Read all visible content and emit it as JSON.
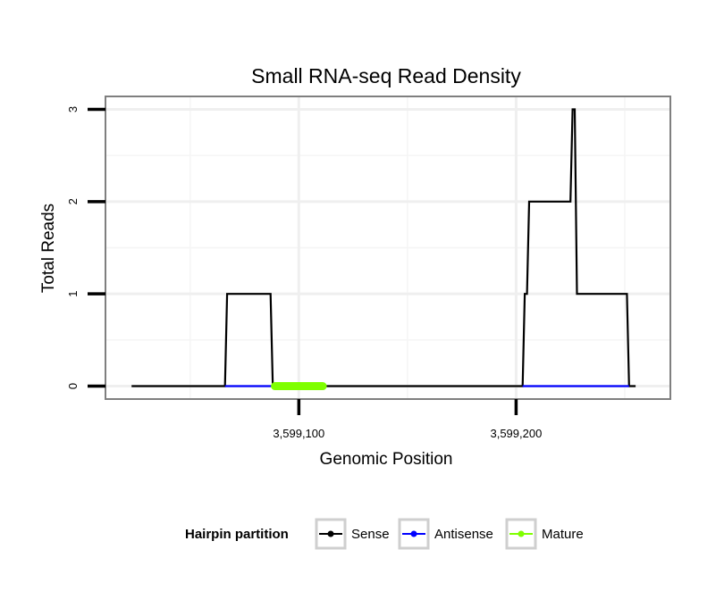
{
  "chart_data": {
    "type": "line",
    "title": "Small RNA-seq Read Density",
    "xlabel": "Genomic Position",
    "ylabel": "Total Reads",
    "xlim": [
      3599011,
      3599271
    ],
    "ylim": [
      -0.14,
      3.14
    ],
    "x_ticks": [
      {
        "value": 3599100,
        "label": "3,599,100"
      },
      {
        "value": 3599200,
        "label": "3,599,200"
      }
    ],
    "y_ticks": [
      {
        "value": 0,
        "label": "0"
      },
      {
        "value": 1,
        "label": "1"
      },
      {
        "value": 2,
        "label": "2"
      },
      {
        "value": 3,
        "label": "3"
      }
    ],
    "x_minor_gridlines": [
      3599050,
      3599150,
      3599250
    ],
    "y_minor_gridlines": [
      0.5,
      1.5,
      2.5
    ],
    "grid": true,
    "legend": {
      "title": "Hairpin partition",
      "position": "bottom",
      "entries": [
        {
          "name": "Sense",
          "color": "#000000"
        },
        {
          "name": "Antisense",
          "color": "#0000ff"
        },
        {
          "name": "Mature",
          "color": "#7fff00"
        }
      ]
    },
    "series": [
      {
        "name": "Sense",
        "color": "#000000",
        "x": [
          3599023,
          3599066,
          3599067,
          3599087,
          3599088,
          3599203,
          3599204,
          3599205,
          3599206,
          3599225,
          3599226,
          3599227,
          3599228,
          3599251,
          3599252,
          3599255
        ],
        "y": [
          0,
          0,
          1,
          1,
          0,
          0,
          1,
          1,
          2,
          2,
          3,
          3,
          1,
          1,
          0,
          0
        ]
      },
      {
        "name": "Antisense",
        "color": "#0000ff",
        "x": [
          3599066,
          3599088,
          3599203,
          3599252
        ],
        "y": [
          0,
          0,
          0,
          0
        ],
        "segments": [
          [
            3599066,
            3599088
          ],
          [
            3599203,
            3599252
          ]
        ]
      },
      {
        "name": "Mature",
        "color": "#7fff00",
        "x": [
          3599089,
          3599111
        ],
        "y": [
          0,
          0
        ]
      }
    ]
  }
}
